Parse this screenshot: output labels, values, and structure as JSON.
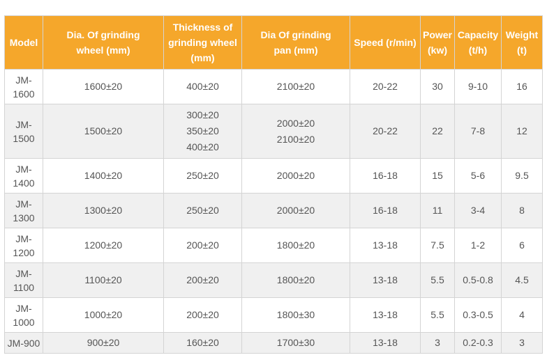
{
  "table": {
    "headers": [
      "Model",
      "Dia. Of grinding wheel (mm)",
      "Thickness of grinding wheel (mm)",
      "Dia Of grinding pan (mm)",
      "Speed (r/min)",
      "Power (kw)",
      "Capacity (t/h)",
      "Weight (t)"
    ],
    "rows": [
      {
        "model": "JM-1600",
        "wheel_dia": "1600±20",
        "thickness": [
          "400±20"
        ],
        "pan_dia": [
          "2100±20"
        ],
        "speed": "20-22",
        "power": "30",
        "capacity": "9-10",
        "weight": "16"
      },
      {
        "model": "JM-1500",
        "wheel_dia": "1500±20",
        "thickness": [
          "300±20",
          "350±20",
          "400±20"
        ],
        "pan_dia": [
          "2000±20",
          "2100±20"
        ],
        "speed": "20-22",
        "power": "22",
        "capacity": "7-8",
        "weight": "12"
      },
      {
        "model": "JM-1400",
        "wheel_dia": "1400±20",
        "thickness": [
          "250±20"
        ],
        "pan_dia": [
          "2000±20"
        ],
        "speed": "16-18",
        "power": "15",
        "capacity": "5-6",
        "weight": "9.5"
      },
      {
        "model": "JM-1300",
        "wheel_dia": "1300±20",
        "thickness": [
          "250±20"
        ],
        "pan_dia": [
          "2000±20"
        ],
        "speed": "16-18",
        "power": "11",
        "capacity": "3-4",
        "weight": "8"
      },
      {
        "model": "JM-1200",
        "wheel_dia": "1200±20",
        "thickness": [
          "200±20"
        ],
        "pan_dia": [
          "1800±20"
        ],
        "speed": "13-18",
        "power": "7.5",
        "capacity": "1-2",
        "weight": "6"
      },
      {
        "model": "JM-1100",
        "wheel_dia": "1100±20",
        "thickness": [
          "200±20"
        ],
        "pan_dia": [
          "1800±20"
        ],
        "speed": "13-18",
        "power": "5.5",
        "capacity": "0.5-0.8",
        "weight": "4.5"
      },
      {
        "model": "JM-1000",
        "wheel_dia": "1000±20",
        "thickness": [
          "200±20"
        ],
        "pan_dia": [
          "1800±30"
        ],
        "speed": "13-18",
        "power": "5.5",
        "capacity": "0.3-0.5",
        "weight": "4"
      },
      {
        "model": "JM-900",
        "wheel_dia": "900±20",
        "thickness": [
          "160±20"
        ],
        "pan_dia": [
          "1700±30"
        ],
        "speed": "13-18",
        "power": "3",
        "capacity": "0.2-0.3",
        "weight": "3"
      }
    ],
    "colors": {
      "header_bg": "#f5a72b",
      "header_text": "#ffffff",
      "alt_row_bg": "#f0f0f0",
      "row_bg": "#ffffff",
      "cell_text": "#555555",
      "border": "#d4d4d4"
    }
  }
}
